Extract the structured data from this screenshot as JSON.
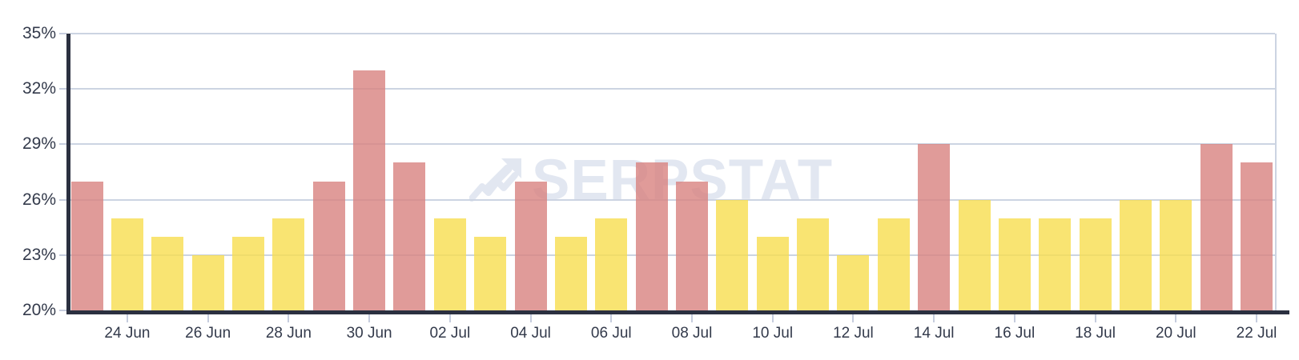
{
  "watermark": {
    "text": "SERPSTAT"
  },
  "chart_data": {
    "type": "bar",
    "title": "",
    "xlabel": "",
    "ylabel": "",
    "unit": "%",
    "ylim": [
      20,
      35
    ],
    "grid": "horizontal",
    "legend": "none",
    "bar_opacity": 0.8,
    "y_ticks": [
      {
        "value": 20,
        "label": "20%"
      },
      {
        "value": 23,
        "label": "23%"
      },
      {
        "value": 26,
        "label": "26%"
      },
      {
        "value": 29,
        "label": "29%"
      },
      {
        "value": 32,
        "label": "32%"
      },
      {
        "value": 35,
        "label": "35%"
      }
    ],
    "x_tick_labels": [
      "24 Jun",
      "26 Jun",
      "28 Jun",
      "30 Jun",
      "02 Jul",
      "04 Jul",
      "06 Jul",
      "08 Jul",
      "10 Jul",
      "12 Jul",
      "14 Jul",
      "16 Jul",
      "18 Jul",
      "20 Jul",
      "22 Jul"
    ],
    "bars": [
      {
        "date": "23 Jun",
        "value": 27,
        "highlight": true
      },
      {
        "date": "24 Jun",
        "value": 25,
        "highlight": false
      },
      {
        "date": "25 Jun",
        "value": 24,
        "highlight": false
      },
      {
        "date": "26 Jun",
        "value": 23,
        "highlight": false
      },
      {
        "date": "27 Jun",
        "value": 24,
        "highlight": false
      },
      {
        "date": "28 Jun",
        "value": 25,
        "highlight": false
      },
      {
        "date": "29 Jun",
        "value": 27,
        "highlight": true
      },
      {
        "date": "30 Jun",
        "value": 33,
        "highlight": true
      },
      {
        "date": "01 Jul",
        "value": 28,
        "highlight": true
      },
      {
        "date": "02 Jul",
        "value": 25,
        "highlight": false
      },
      {
        "date": "03 Jul",
        "value": 24,
        "highlight": false
      },
      {
        "date": "04 Jul",
        "value": 27,
        "highlight": true
      },
      {
        "date": "05 Jul",
        "value": 24,
        "highlight": false
      },
      {
        "date": "06 Jul",
        "value": 25,
        "highlight": false
      },
      {
        "date": "07 Jul",
        "value": 28,
        "highlight": true
      },
      {
        "date": "08 Jul",
        "value": 27,
        "highlight": true
      },
      {
        "date": "09 Jul",
        "value": 26,
        "highlight": false
      },
      {
        "date": "10 Jul",
        "value": 24,
        "highlight": false
      },
      {
        "date": "11 Jul",
        "value": 25,
        "highlight": false
      },
      {
        "date": "12 Jul",
        "value": 23,
        "highlight": false
      },
      {
        "date": "13 Jul",
        "value": 25,
        "highlight": false
      },
      {
        "date": "14 Jul",
        "value": 29,
        "highlight": true
      },
      {
        "date": "15 Jul",
        "value": 26,
        "highlight": false
      },
      {
        "date": "16 Jul",
        "value": 25,
        "highlight": false
      },
      {
        "date": "17 Jul",
        "value": 25,
        "highlight": false
      },
      {
        "date": "18 Jul",
        "value": 25,
        "highlight": false
      },
      {
        "date": "19 Jul",
        "value": 26,
        "highlight": false
      },
      {
        "date": "20 Jul",
        "value": 26,
        "highlight": false
      },
      {
        "date": "21 Jul",
        "value": 29,
        "highlight": true
      },
      {
        "date": "22 Jul",
        "value": 28,
        "highlight": true
      }
    ],
    "colors": {
      "bar_default": "#f8dd4f",
      "bar_highlight": "#d88280",
      "gridline": "#ccd4e2",
      "axis": "#2b3040",
      "tick": "#c6cdde",
      "label_text": "#333a4b",
      "watermark": "#e2e7f1"
    }
  }
}
